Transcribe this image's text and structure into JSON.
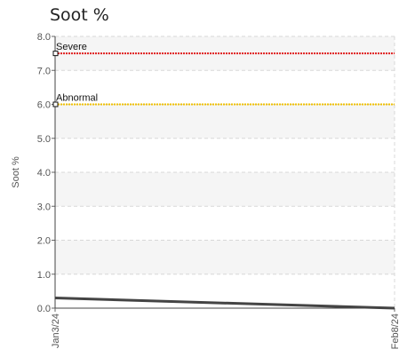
{
  "chart_data": {
    "type": "line",
    "title": "Soot %",
    "ylabel": "Soot %",
    "xlabel": "",
    "ylim": [
      0,
      8
    ],
    "y_ticks": [
      "0.0",
      "1.0",
      "2.0",
      "3.0",
      "4.0",
      "5.0",
      "6.0",
      "7.0",
      "8.0"
    ],
    "x_tick_labels": [
      "Jan3/24",
      "Feb8/24"
    ],
    "grid": true,
    "series": [
      {
        "x": [
          "Jan3/24",
          "Feb8/24"
        ],
        "values": [
          0.3,
          0.0
        ],
        "color": "#444444"
      }
    ],
    "thresholds": [
      {
        "label": "Severe",
        "value": 7.5,
        "color": "#e02020"
      },
      {
        "label": "Abnormal",
        "value": 6.0,
        "color": "#f0c000"
      }
    ]
  }
}
